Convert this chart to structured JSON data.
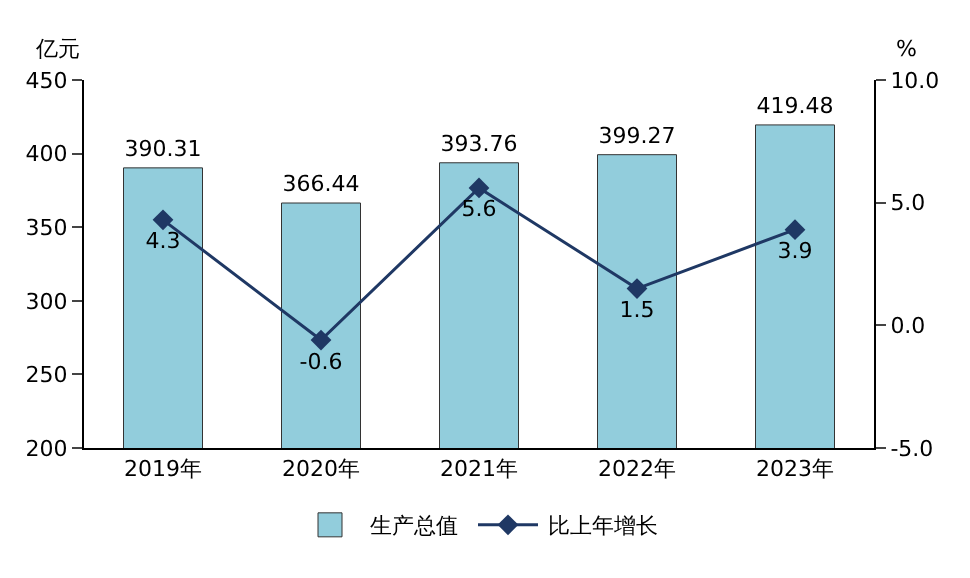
{
  "chart_data": {
    "type": "bar",
    "categories": [
      "2019年",
      "2020年",
      "2021年",
      "2022年",
      "2023年"
    ],
    "ylabel": "亿元",
    "y2label": "%",
    "series": [
      {
        "name": "生产总值",
        "color": "#92cddc",
        "values": [
          390.31,
          366.44,
          393.76,
          399.27,
          419.48
        ]
      },
      {
        "name": "比上年增长",
        "type": "line",
        "axis": "y2",
        "color": "#1f3864",
        "values": [
          4.3,
          -0.6,
          5.6,
          1.5,
          3.9
        ]
      }
    ],
    "ylim": [
      200,
      450
    ],
    "yticks": [
      200,
      250,
      300,
      350,
      400,
      450
    ],
    "y2lim": [
      -5,
      10
    ],
    "y2ticks": [
      {
        "value": -5,
        "label": "-5.0"
      },
      {
        "value": 0,
        "label": "0.0"
      },
      {
        "value": 5,
        "label": "5.0"
      },
      {
        "value": 10,
        "label": "10.0"
      }
    ],
    "data_labels": true,
    "marker": "diamond",
    "line_style": "solid",
    "legend": "bottom"
  }
}
